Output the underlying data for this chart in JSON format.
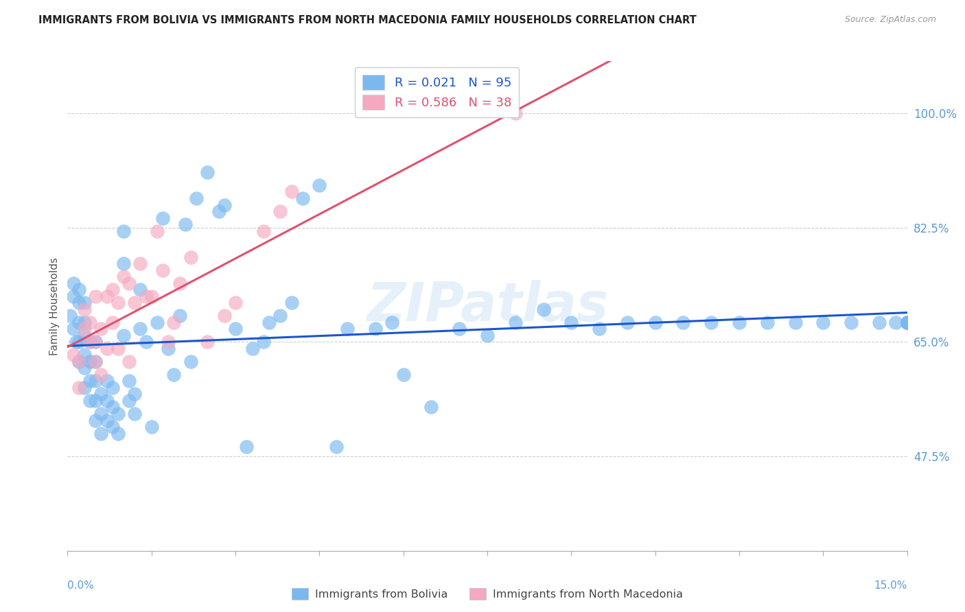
{
  "title": "IMMIGRANTS FROM BOLIVIA VS IMMIGRANTS FROM NORTH MACEDONIA FAMILY HOUSEHOLDS CORRELATION CHART",
  "source": "Source: ZipAtlas.com",
  "ylabel": "Family Households",
  "ytick_labels": [
    "47.5%",
    "65.0%",
    "82.5%",
    "100.0%"
  ],
  "ytick_values": [
    0.475,
    0.65,
    0.825,
    1.0
  ],
  "xrange": [
    0.0,
    0.15
  ],
  "yrange": [
    0.33,
    1.08
  ],
  "color_bolivia": "#7ab8f0",
  "color_macedonia": "#f5a8bf",
  "color_line_bolivia": "#1a56cc",
  "color_line_macedonia": "#e05070",
  "watermark": "ZIPatlas",
  "bolivia_label": "R = 0.021   N = 95",
  "macedonia_label": "R = 0.586   N = 38",
  "bolivia_x": [
    0.0005,
    0.001,
    0.001,
    0.001,
    0.0015,
    0.002,
    0.002,
    0.002,
    0.002,
    0.002,
    0.003,
    0.003,
    0.003,
    0.003,
    0.003,
    0.003,
    0.004,
    0.004,
    0.004,
    0.004,
    0.005,
    0.005,
    0.005,
    0.005,
    0.005,
    0.006,
    0.006,
    0.006,
    0.007,
    0.007,
    0.007,
    0.008,
    0.008,
    0.008,
    0.009,
    0.009,
    0.01,
    0.01,
    0.01,
    0.011,
    0.011,
    0.012,
    0.012,
    0.013,
    0.013,
    0.014,
    0.015,
    0.016,
    0.017,
    0.018,
    0.019,
    0.02,
    0.021,
    0.022,
    0.023,
    0.025,
    0.027,
    0.028,
    0.03,
    0.032,
    0.033,
    0.035,
    0.036,
    0.038,
    0.04,
    0.042,
    0.045,
    0.048,
    0.05,
    0.055,
    0.058,
    0.06,
    0.065,
    0.07,
    0.075,
    0.08,
    0.085,
    0.09,
    0.095,
    0.1,
    0.105,
    0.11,
    0.115,
    0.12,
    0.125,
    0.13,
    0.135,
    0.14,
    0.145,
    0.148,
    0.15,
    0.15,
    0.15,
    0.15,
    0.15
  ],
  "bolivia_y": [
    0.69,
    0.67,
    0.72,
    0.74,
    0.65,
    0.62,
    0.65,
    0.68,
    0.71,
    0.73,
    0.58,
    0.61,
    0.63,
    0.66,
    0.68,
    0.71,
    0.56,
    0.59,
    0.62,
    0.65,
    0.53,
    0.56,
    0.59,
    0.62,
    0.65,
    0.51,
    0.54,
    0.57,
    0.53,
    0.56,
    0.59,
    0.52,
    0.55,
    0.58,
    0.51,
    0.54,
    0.66,
    0.77,
    0.82,
    0.56,
    0.59,
    0.54,
    0.57,
    0.67,
    0.73,
    0.65,
    0.52,
    0.68,
    0.84,
    0.64,
    0.6,
    0.69,
    0.83,
    0.62,
    0.87,
    0.91,
    0.85,
    0.86,
    0.67,
    0.49,
    0.64,
    0.65,
    0.68,
    0.69,
    0.71,
    0.87,
    0.89,
    0.49,
    0.67,
    0.67,
    0.68,
    0.6,
    0.55,
    0.67,
    0.66,
    0.68,
    0.7,
    0.68,
    0.67,
    0.68,
    0.68,
    0.68,
    0.68,
    0.68,
    0.68,
    0.68,
    0.68,
    0.68,
    0.68,
    0.68,
    0.68,
    0.68,
    0.68,
    0.68,
    0.68
  ],
  "macedonia_x": [
    0.001,
    0.002,
    0.002,
    0.003,
    0.003,
    0.004,
    0.004,
    0.005,
    0.005,
    0.005,
    0.006,
    0.006,
    0.007,
    0.007,
    0.008,
    0.008,
    0.009,
    0.009,
    0.01,
    0.011,
    0.011,
    0.012,
    0.013,
    0.014,
    0.015,
    0.016,
    0.017,
    0.018,
    0.019,
    0.02,
    0.022,
    0.025,
    0.028,
    0.03,
    0.035,
    0.038,
    0.04,
    0.08
  ],
  "macedonia_y": [
    0.63,
    0.58,
    0.62,
    0.67,
    0.7,
    0.65,
    0.68,
    0.62,
    0.65,
    0.72,
    0.6,
    0.67,
    0.64,
    0.72,
    0.68,
    0.73,
    0.64,
    0.71,
    0.75,
    0.62,
    0.74,
    0.71,
    0.77,
    0.72,
    0.72,
    0.82,
    0.76,
    0.65,
    0.68,
    0.74,
    0.78,
    0.65,
    0.69,
    0.71,
    0.82,
    0.85,
    0.88,
    1.0
  ]
}
